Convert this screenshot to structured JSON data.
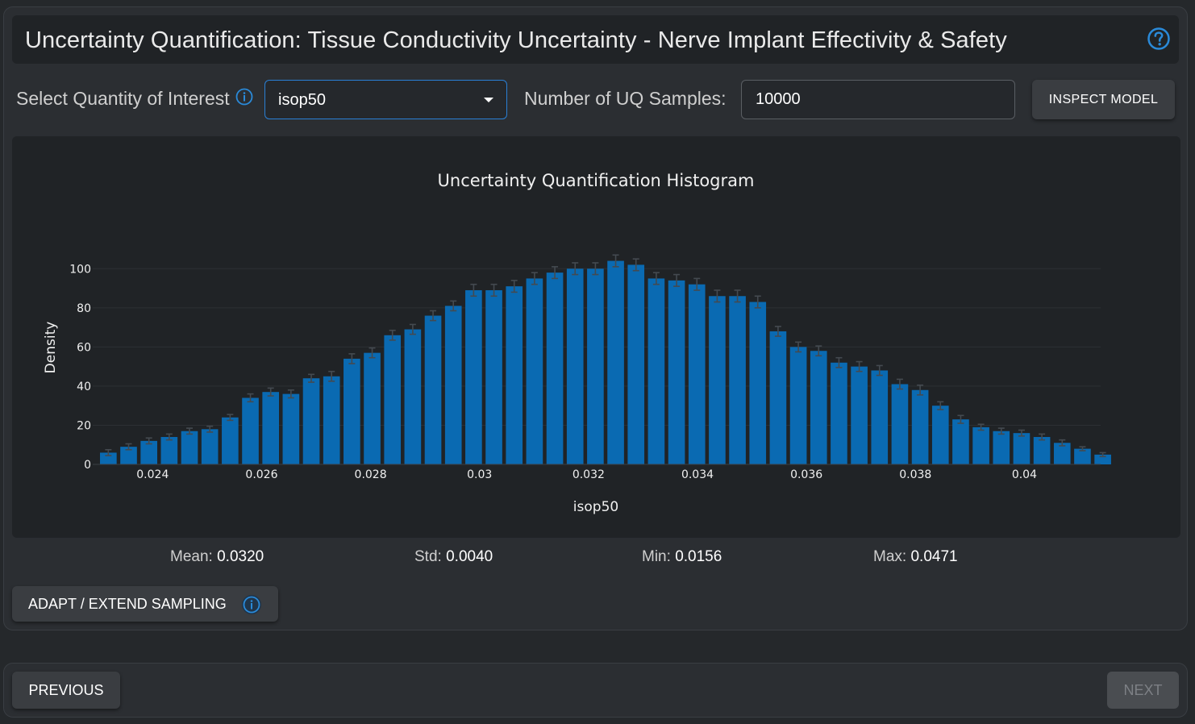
{
  "header": {
    "title": "Uncertainty Quantification: Tissue Conductivity Uncertainty - Nerve Implant Effectivity & Safety",
    "help_icon": "question-circle-icon"
  },
  "controls": {
    "qoi_label": "Select Quantity of Interest",
    "qoi_value": "isop50",
    "samples_label": "Number of UQ Samples:",
    "samples_value": "10000",
    "inspect_label": "INSPECT MODEL"
  },
  "stats": {
    "mean_label": "Mean:",
    "mean_value": "0.0320",
    "std_label": "Std:",
    "std_value": "0.0040",
    "min_label": "Min:",
    "min_value": "0.0156",
    "max_label": "Max:",
    "max_value": "0.0471"
  },
  "adapt_label": "ADAPT / EXTEND SAMPLING",
  "footer": {
    "previous_label": "PREVIOUS",
    "next_label": "NEXT"
  },
  "colors": {
    "accent": "#2a7fd4",
    "bar": "#0a6ab2",
    "panel": "#2b2e32",
    "chart_bg": "#202326"
  },
  "chart_data": {
    "type": "bar",
    "title": "Uncertainty Quantification Histogram",
    "xlabel": "isop50",
    "ylabel": "Density",
    "x_start": 0.023,
    "bin_width": 0.0003725,
    "xlim": [
      0.0229,
      0.0414
    ],
    "ylim": [
      0,
      110
    ],
    "xticks": [
      0.024,
      0.026,
      0.028,
      0.03,
      0.032,
      0.034,
      0.036,
      0.038,
      0.04
    ],
    "xtick_labels": [
      "0.024",
      "0.026",
      "0.028",
      "0.03",
      "0.032",
      "0.034",
      "0.036",
      "0.038",
      "0.04"
    ],
    "yticks": [
      0,
      20,
      40,
      60,
      80,
      100
    ],
    "ytick_labels": [
      "0",
      "20",
      "40",
      "60",
      "80",
      "100"
    ],
    "values": [
      6,
      9,
      12,
      14,
      17,
      18,
      24,
      34,
      37,
      36,
      44,
      45,
      54,
      57,
      66,
      69,
      76,
      81,
      89,
      89,
      91,
      95,
      98,
      100,
      100,
      104,
      102,
      95,
      94,
      92,
      86,
      86,
      83,
      68,
      60,
      58,
      52,
      50,
      48,
      41,
      38,
      30,
      23,
      19,
      17,
      16,
      14,
      11,
      8,
      5
    ],
    "errors": [
      1.5,
      1.5,
      1.5,
      1.5,
      1.5,
      1.5,
      1.5,
      2,
      2,
      2,
      2,
      2.5,
      2.5,
      2.5,
      2.5,
      2.5,
      2.5,
      2.5,
      3,
      3,
      3,
      3,
      3,
      3,
      3,
      3,
      3,
      3,
      3,
      3,
      3,
      3,
      3,
      2.5,
      2.5,
      2.5,
      2.5,
      2.5,
      2.5,
      2.5,
      2.5,
      2,
      2,
      1.5,
      1.5,
      1.5,
      1.5,
      1.5,
      1,
      1
    ],
    "grid": true
  }
}
